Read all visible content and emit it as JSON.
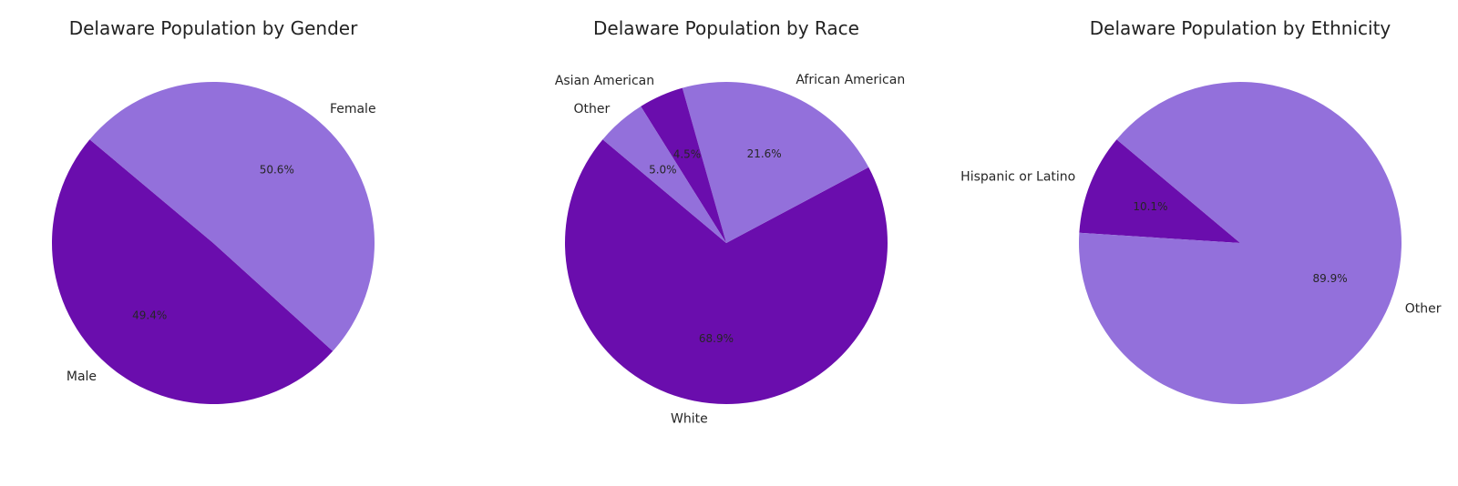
{
  "colors": {
    "dark": "#6a0dad",
    "light": "#9370db"
  },
  "chart_data": [
    {
      "type": "pie",
      "title": "Delaware Population by Gender",
      "slices": [
        {
          "label": "Male",
          "value": 49.4,
          "pct_label": "49.4%",
          "color": "#6a0dad"
        },
        {
          "label": "Female",
          "value": 50.6,
          "pct_label": "50.6%",
          "color": "#9370db"
        }
      ]
    },
    {
      "type": "pie",
      "title": "Delaware Population by Race",
      "slices": [
        {
          "label": "White",
          "value": 68.9,
          "pct_label": "68.9%",
          "color": "#6a0dad"
        },
        {
          "label": "African American",
          "value": 21.6,
          "pct_label": "21.6%",
          "color": "#9370db"
        },
        {
          "label": "Asian American",
          "value": 4.5,
          "pct_label": "4.5%",
          "color": "#6a0dad"
        },
        {
          "label": "Other",
          "value": 5.0,
          "pct_label": "5.0%",
          "color": "#9370db"
        }
      ]
    },
    {
      "type": "pie",
      "title": "Delaware Population by Ethnicity",
      "slices": [
        {
          "label": "Hispanic or Latino",
          "value": 10.1,
          "pct_label": "10.1%",
          "color": "#6a0dad"
        },
        {
          "label": "Other",
          "value": 89.9,
          "pct_label": "89.9%",
          "color": "#9370db"
        }
      ]
    }
  ]
}
